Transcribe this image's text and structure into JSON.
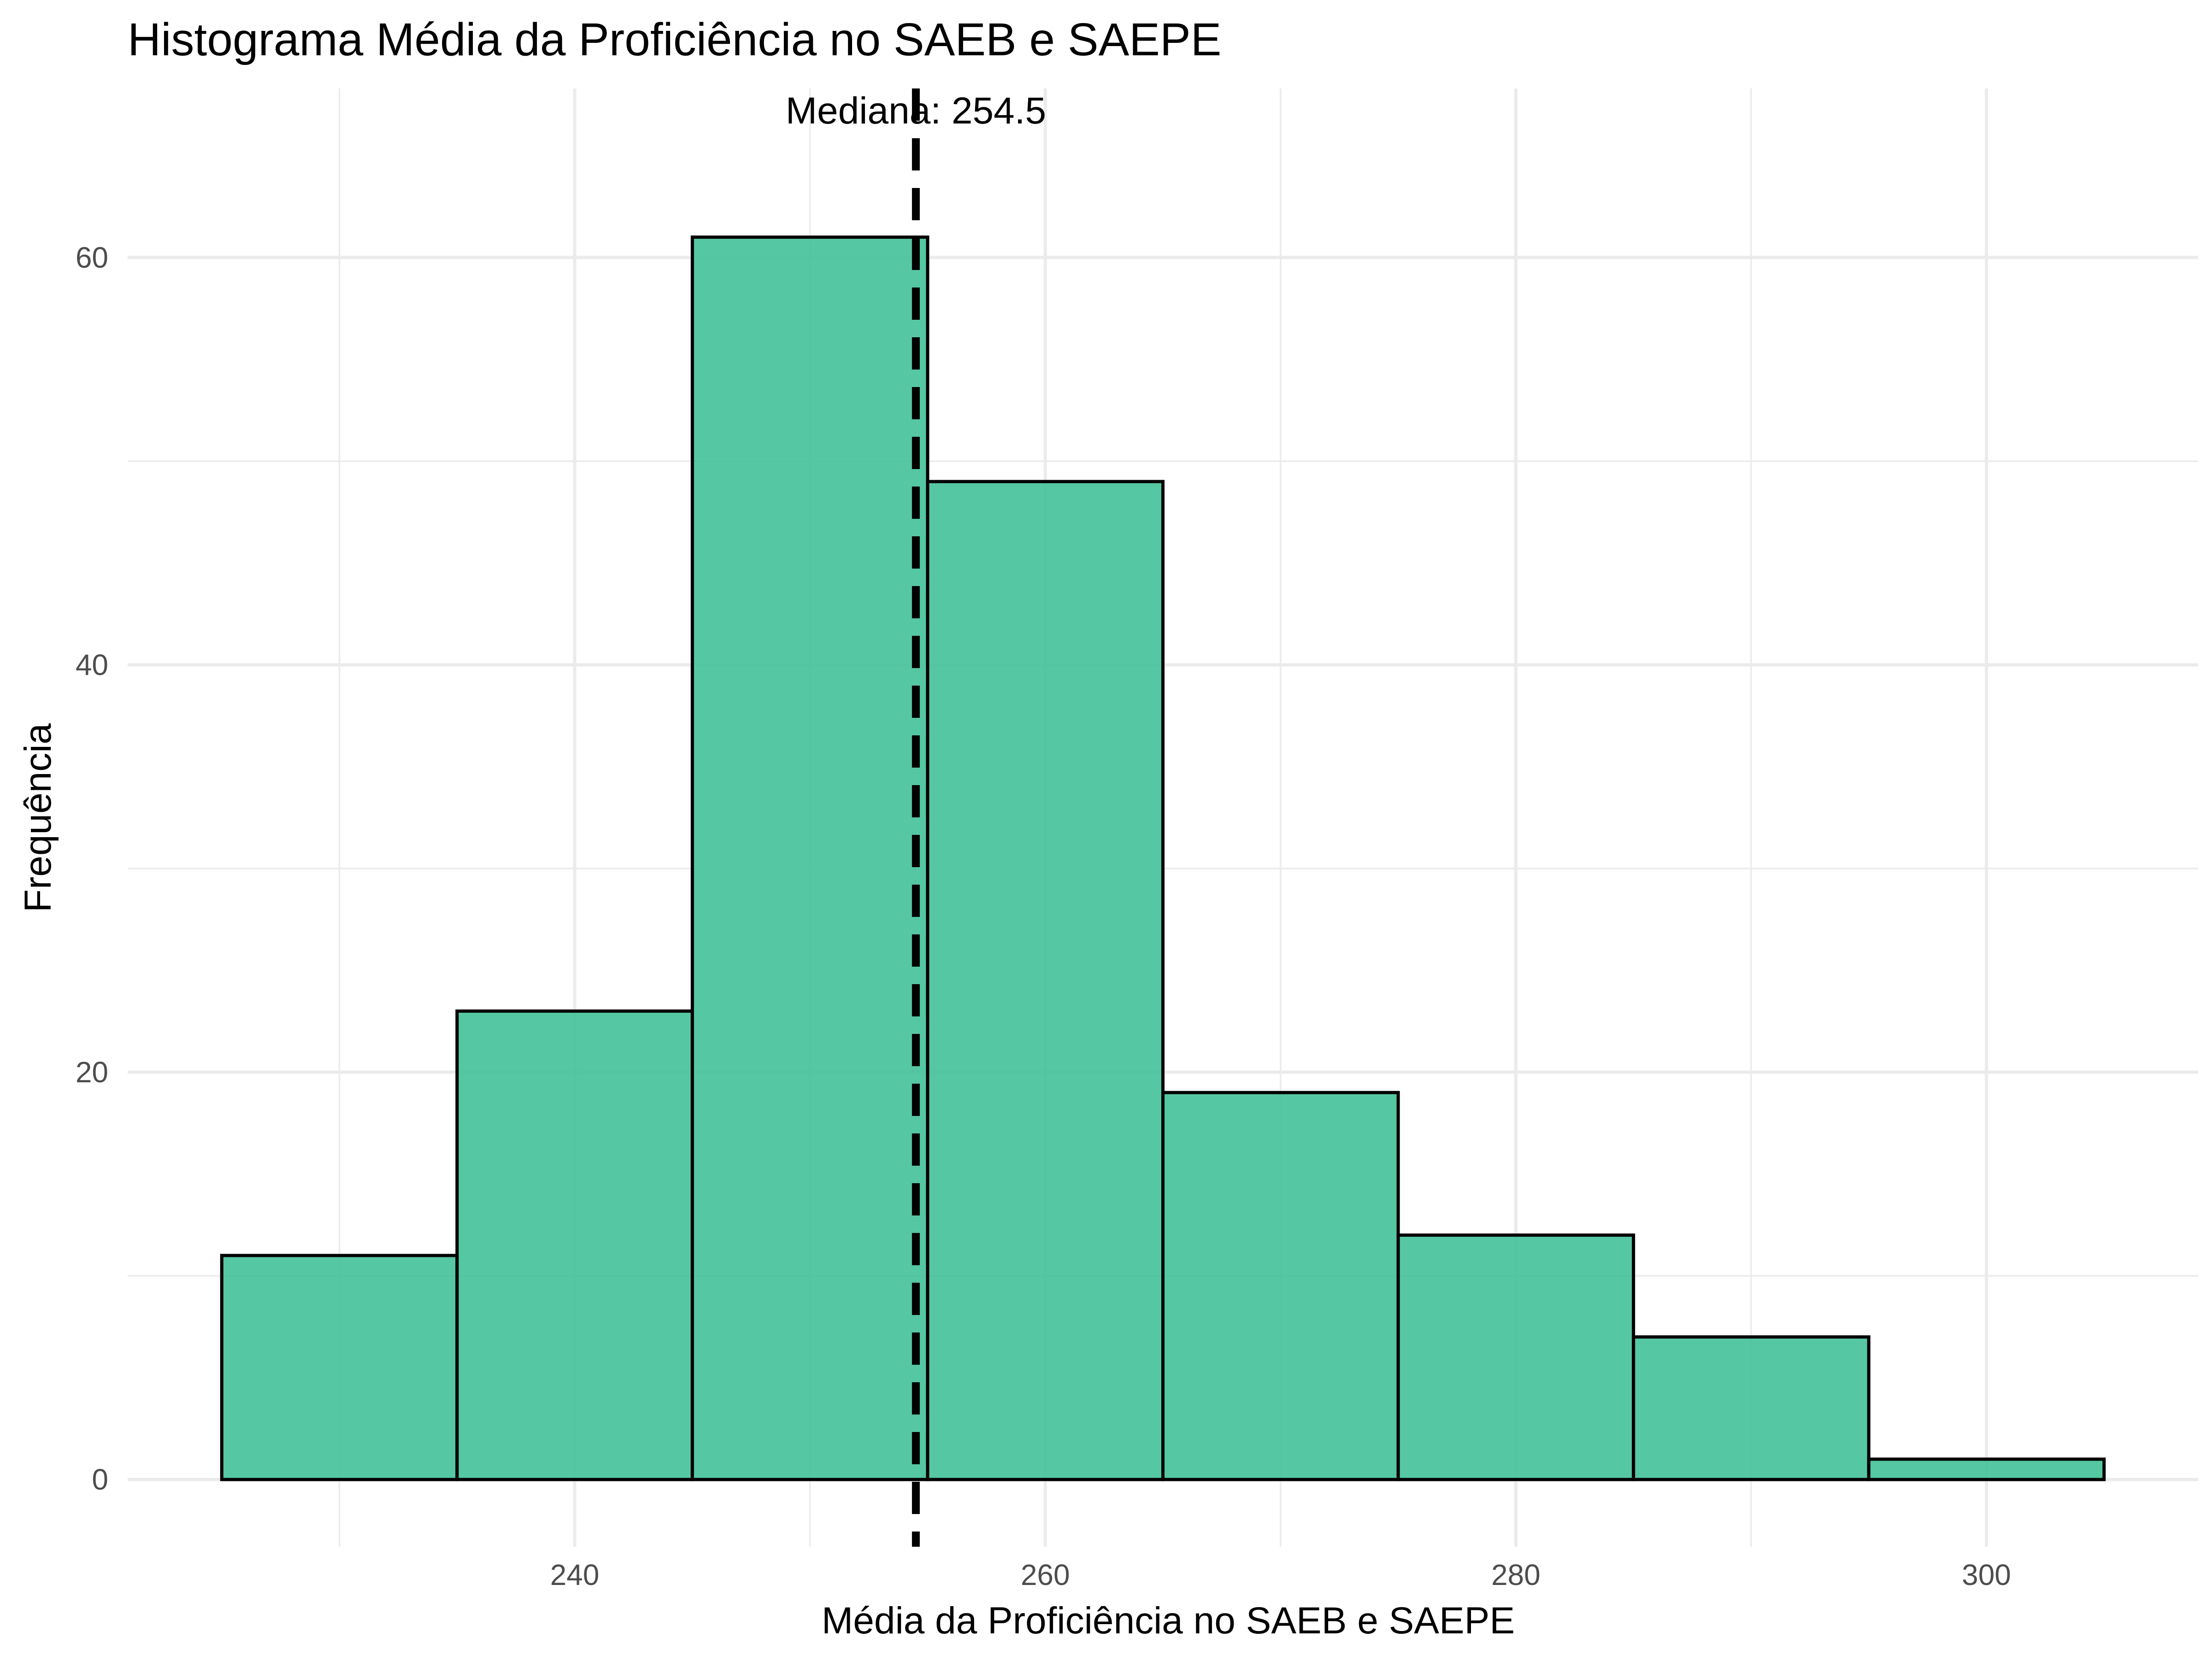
{
  "chart_data": {
    "type": "bar",
    "subtype": "histogram",
    "title": "Histograma Média da Proficiência no SAEB e SAEPE",
    "xlabel": "Média da Proficiência no SAEB e SAEPE",
    "ylabel": "Frequência",
    "bin_width": 10,
    "bins": [
      {
        "start": 225,
        "end": 235,
        "count": 11
      },
      {
        "start": 235,
        "end": 245,
        "count": 23
      },
      {
        "start": 245,
        "end": 255,
        "count": 61
      },
      {
        "start": 255,
        "end": 265,
        "count": 49
      },
      {
        "start": 265,
        "end": 275,
        "count": 19
      },
      {
        "start": 275,
        "end": 285,
        "count": 12
      },
      {
        "start": 285,
        "end": 295,
        "count": 7
      },
      {
        "start": 295,
        "end": 305,
        "count": 1
      }
    ],
    "xlim": [
      221,
      309
    ],
    "ylim": [
      -3.3,
      68.3
    ],
    "x_ticks": [
      240,
      260,
      280,
      300
    ],
    "x_tick_labels": [
      "240",
      "260",
      "280",
      "300"
    ],
    "y_ticks": [
      0,
      20,
      40,
      60
    ],
    "y_tick_labels": [
      "0",
      "20",
      "40",
      "60"
    ],
    "x_minor_ticks": [
      230,
      250,
      270,
      290
    ],
    "y_minor_ticks": [
      10,
      30,
      50
    ],
    "grid": true,
    "legend": "none",
    "median_line": {
      "value": 254.5,
      "label": "Mediana: 254.5",
      "style": "dashed"
    },
    "colors": {
      "bar_fill": "#3cbf95",
      "bar_opacity": 0.87,
      "bar_outline": "#000000",
      "median_line": "#000000",
      "grid": "#ebebeb",
      "tick_text": "#4d4d4d"
    }
  }
}
